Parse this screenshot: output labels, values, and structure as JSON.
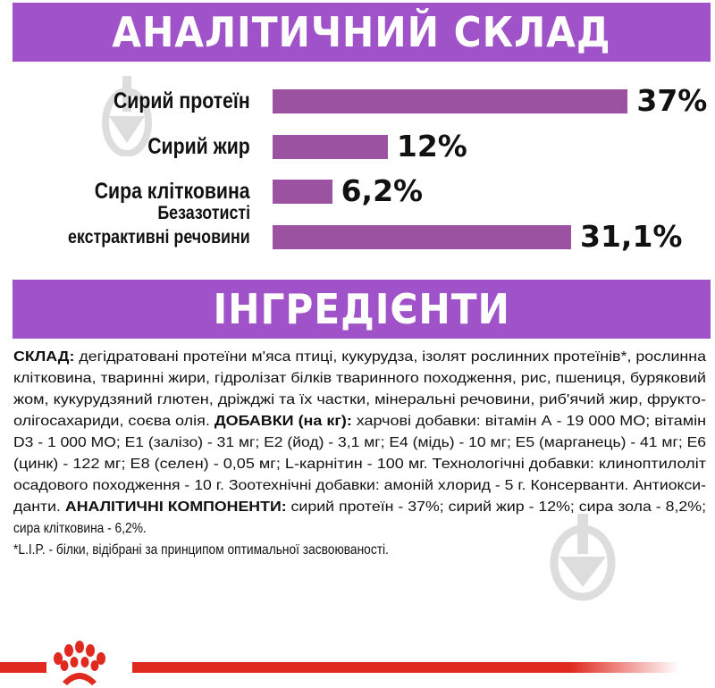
{
  "header": {
    "title": "АНАЛІТИЧНИЙ СКЛАД"
  },
  "chart_data": {
    "type": "bar",
    "orientation": "horizontal",
    "categories": [
      "Сирий протеїн",
      "Сирий жир",
      "Сира клітковина",
      "Безазотисті екстрактивні речовини"
    ],
    "category_lines": [
      [
        "Сирий протеїн"
      ],
      [
        "Сирий жир"
      ],
      [
        "Сира клітковина"
      ],
      [
        "Безазотисті",
        "екстрактивні речовини"
      ]
    ],
    "values": [
      37,
      12,
      6.2,
      31.1
    ],
    "data_labels": [
      "37%",
      "12%",
      "6,2%",
      "31,1%"
    ],
    "unit": "%",
    "bar_color": "#9b52a0",
    "grid": false
  },
  "ingredients": {
    "title": "ІНГРЕДІЄНТИ",
    "lines": [
      [
        {
          "b": true,
          "t": "СКЛАД:"
        },
        {
          "b": false,
          "t": " дегідратовані протеїни м'яса птиці, кукурудза, ізолят рослинних протеїнів*, рослинна"
        }
      ],
      [
        {
          "b": false,
          "t": "клітковина, тваринні жири, гідролізат білків тваринного походження, рис, пшениця, буряковий"
        }
      ],
      [
        {
          "b": false,
          "t": "жом, кукурудзяний глютен, дріжджі та їх частки, мінеральні речовини, риб'ячий жир, фрукто-"
        }
      ],
      [
        {
          "b": false,
          "t": "олігосахариди, соєва олія. "
        },
        {
          "b": true,
          "t": "ДОБАВКИ (на кг):"
        },
        {
          "b": false,
          "t": " харчові добавки: вітамін А - 19 000 МО; вітамін"
        }
      ],
      [
        {
          "b": false,
          "t": "D3 - 1 000 МО; Е1 (залізо) - 31 мг; Е2 (йод) - 3,1 мг; Е4 (мідь) - 10 мг; Е5 (марганець) - 41 мг; Е6"
        }
      ],
      [
        {
          "b": false,
          "t": "(цинк) - 122 мг; Е8 (селен) - 0,05 мг; L-карнітин - 100 мг. Технологічні добавки: клиноптилоліт"
        }
      ],
      [
        {
          "b": false,
          "t": "осадового походження - 10 г. Зоотехнічні добавки: амоній хлорид - 5 г. Консерванти. Антиокси-"
        }
      ],
      [
        {
          "b": false,
          "t": "данти.  "
        },
        {
          "b": true,
          "t": "АНАЛІТИЧНІ КОМПОНЕНТИ:"
        },
        {
          "b": false,
          "t": " сирий протеїн - 37%; сирий жир - 12%; сира зола - 8,2%;"
        }
      ],
      [
        {
          "b": false,
          "t": "сира клітковина - 6,2%."
        }
      ],
      [
        {
          "b": false,
          "t": "*L.I.P. - білки, відібрані за принципом оптимальної засвоюваності."
        }
      ]
    ],
    "justify": [
      true,
      true,
      true,
      true,
      true,
      true,
      true,
      true,
      false,
      false
    ]
  },
  "colors": {
    "band": "#a052c8",
    "bar": "#9b52a0",
    "brand_red": "#e0291f"
  },
  "logo": {
    "icon": "royal-canin-crown-icon"
  }
}
